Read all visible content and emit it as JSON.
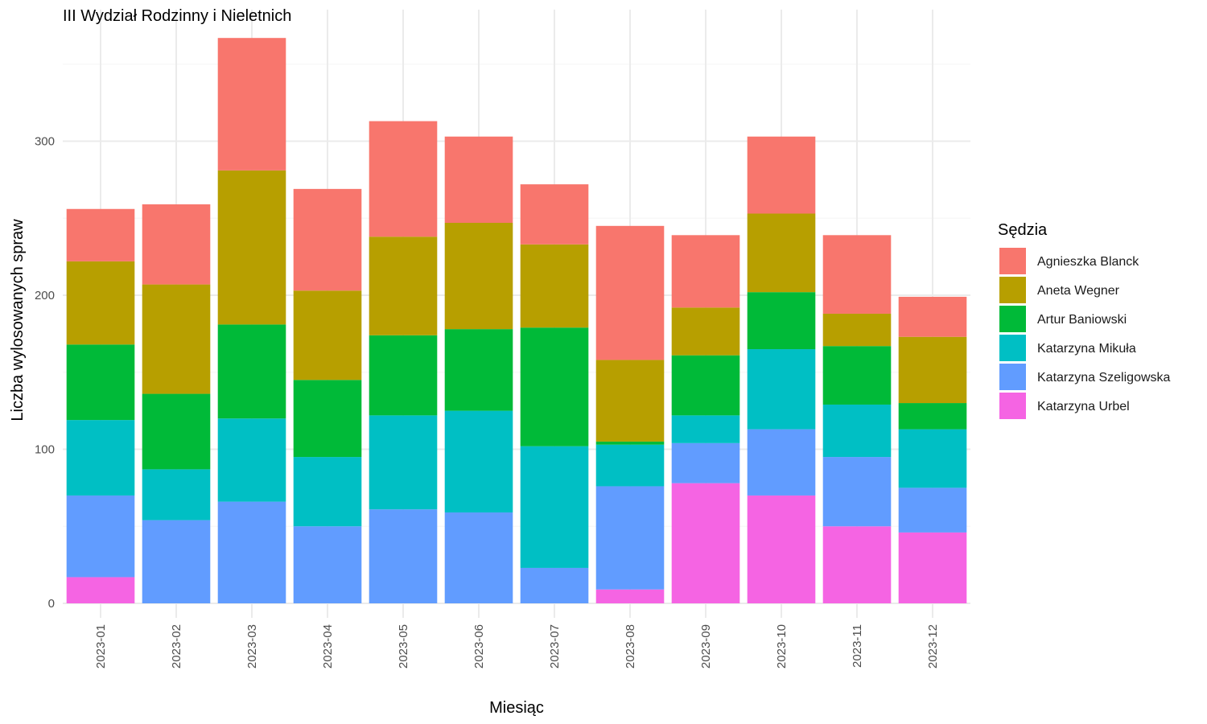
{
  "chart_data": {
    "type": "bar",
    "stacked": true,
    "title": "III Wydział Rodzinny i Nieletnich",
    "xlabel": "Miesiąc",
    "ylabel": "Liczba wylosowanych spraw",
    "ylim": [
      0,
      375
    ],
    "yticks": [
      0,
      100,
      200,
      300
    ],
    "grid": true,
    "legend_title": "Sędzia",
    "legend_position": "right",
    "categories": [
      "2023-01",
      "2023-02",
      "2023-03",
      "2023-04",
      "2023-05",
      "2023-06",
      "2023-07",
      "2023-08",
      "2023-09",
      "2023-10",
      "2023-11",
      "2023-12"
    ],
    "series": [
      {
        "name": "Agnieszka Blanck",
        "color": "#F8766D",
        "values": [
          34,
          52,
          86,
          66,
          75,
          56,
          39,
          87,
          47,
          50,
          51,
          26
        ]
      },
      {
        "name": "Aneta Wegner",
        "color": "#B79F00",
        "values": [
          54,
          71,
          100,
          58,
          64,
          69,
          54,
          53,
          31,
          51,
          21,
          43
        ]
      },
      {
        "name": "Artur Baniowski",
        "color": "#00BA38",
        "values": [
          49,
          49,
          61,
          50,
          52,
          53,
          77,
          2,
          39,
          37,
          38,
          17
        ]
      },
      {
        "name": "Katarzyna Mikuła",
        "color": "#00BFC4",
        "values": [
          49,
          33,
          54,
          45,
          61,
          66,
          79,
          27,
          18,
          52,
          34,
          38
        ]
      },
      {
        "name": "Katarzyna Szeligowska",
        "color": "#619CFF",
        "values": [
          53,
          54,
          66,
          50,
          61,
          59,
          23,
          67,
          26,
          43,
          45,
          29
        ]
      },
      {
        "name": "Katarzyna Urbel",
        "color": "#F564E3",
        "values": [
          17,
          0,
          0,
          0,
          0,
          0,
          0,
          9,
          78,
          70,
          50,
          46
        ]
      }
    ]
  }
}
